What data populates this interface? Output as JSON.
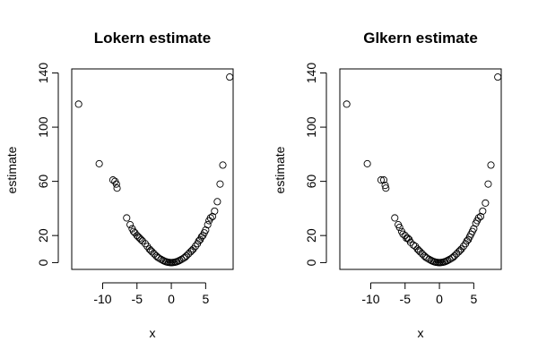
{
  "chart_data": [
    {
      "type": "scatter",
      "title": "Lokern estimate",
      "xlabel": "x",
      "ylabel": "estimate",
      "xlim": [
        -14.5,
        9
      ],
      "ylim": [
        -5,
        143
      ],
      "xticks": [
        -10,
        -5,
        0,
        5
      ],
      "yticks": [
        0,
        20,
        60,
        100,
        140
      ],
      "grid": false,
      "points": [
        [
          -13.5,
          117
        ],
        [
          -10.5,
          73
        ],
        [
          -8.5,
          61
        ],
        [
          -8.2,
          60
        ],
        [
          -8.0,
          58
        ],
        [
          -7.9,
          55
        ],
        [
          -6.5,
          33
        ],
        [
          -6.0,
          28
        ],
        [
          -5.7,
          25
        ],
        [
          -5.5,
          23
        ],
        [
          -5.3,
          22
        ],
        [
          -5.0,
          20
        ],
        [
          -4.8,
          19
        ],
        [
          -4.6,
          18
        ],
        [
          -4.4,
          17
        ],
        [
          -4.2,
          16
        ],
        [
          -3.8,
          14
        ],
        [
          -3.5,
          12
        ],
        [
          -3.2,
          10
        ],
        [
          -3.0,
          9
        ],
        [
          -2.8,
          8
        ],
        [
          -2.5,
          6.5
        ],
        [
          -2.2,
          5
        ],
        [
          -2.0,
          4
        ],
        [
          -1.8,
          3.3
        ],
        [
          -1.5,
          2.4
        ],
        [
          -1.2,
          1.6
        ],
        [
          -1.0,
          1.1
        ],
        [
          -0.8,
          0.7
        ],
        [
          -0.6,
          0.4
        ],
        [
          -0.4,
          0.2
        ],
        [
          -0.2,
          0.05
        ],
        [
          0.0,
          0
        ],
        [
          0.2,
          0.05
        ],
        [
          0.4,
          0.2
        ],
        [
          0.6,
          0.4
        ],
        [
          0.8,
          0.7
        ],
        [
          1.0,
          1.1
        ],
        [
          1.2,
          1.6
        ],
        [
          1.5,
          2.4
        ],
        [
          1.8,
          3.3
        ],
        [
          2.0,
          4
        ],
        [
          2.2,
          5
        ],
        [
          2.5,
          6.5
        ],
        [
          2.8,
          8
        ],
        [
          3.0,
          9
        ],
        [
          3.2,
          10
        ],
        [
          3.5,
          12
        ],
        [
          3.8,
          14
        ],
        [
          4.0,
          16
        ],
        [
          4.2,
          17
        ],
        [
          4.4,
          19
        ],
        [
          4.6,
          20
        ],
        [
          4.8,
          22
        ],
        [
          5.0,
          24
        ],
        [
          5.3,
          28
        ],
        [
          5.5,
          31
        ],
        [
          5.7,
          33
        ],
        [
          6.0,
          34
        ],
        [
          6.3,
          38
        ],
        [
          6.7,
          45
        ],
        [
          7.1,
          58
        ],
        [
          7.5,
          72
        ],
        [
          8.5,
          137
        ]
      ]
    },
    {
      "type": "scatter",
      "title": "Glkern estimate",
      "xlabel": "x",
      "ylabel": "estimate",
      "xlim": [
        -14.5,
        9
      ],
      "ylim": [
        -5,
        143
      ],
      "xticks": [
        -10,
        -5,
        0,
        5
      ],
      "yticks": [
        0,
        20,
        60,
        100,
        140
      ],
      "grid": false,
      "points": [
        [
          -13.5,
          117
        ],
        [
          -10.5,
          73
        ],
        [
          -8.5,
          61
        ],
        [
          -8.1,
          61
        ],
        [
          -7.9,
          57
        ],
        [
          -7.8,
          55
        ],
        [
          -6.5,
          33
        ],
        [
          -6.0,
          28
        ],
        [
          -5.8,
          26
        ],
        [
          -5.5,
          23
        ],
        [
          -5.3,
          21
        ],
        [
          -5.0,
          20
        ],
        [
          -4.8,
          18
        ],
        [
          -4.6,
          18
        ],
        [
          -4.4,
          17
        ],
        [
          -4.2,
          15
        ],
        [
          -3.8,
          13
        ],
        [
          -3.5,
          12
        ],
        [
          -3.2,
          10
        ],
        [
          -3.0,
          9
        ],
        [
          -2.8,
          8
        ],
        [
          -2.5,
          6.5
        ],
        [
          -2.2,
          5
        ],
        [
          -2.0,
          4
        ],
        [
          -1.8,
          3.3
        ],
        [
          -1.5,
          2.4
        ],
        [
          -1.2,
          1.6
        ],
        [
          -1.0,
          1.1
        ],
        [
          -0.8,
          0.7
        ],
        [
          -0.6,
          0.4
        ],
        [
          -0.4,
          0.2
        ],
        [
          -0.2,
          0.05
        ],
        [
          0.0,
          0
        ],
        [
          0.2,
          0.05
        ],
        [
          0.4,
          0.2
        ],
        [
          0.6,
          0.4
        ],
        [
          0.8,
          0.7
        ],
        [
          1.0,
          1.1
        ],
        [
          1.2,
          1.6
        ],
        [
          1.5,
          2.4
        ],
        [
          1.8,
          3.3
        ],
        [
          2.0,
          4
        ],
        [
          2.2,
          5
        ],
        [
          2.5,
          6.5
        ],
        [
          2.8,
          8
        ],
        [
          3.0,
          9
        ],
        [
          3.2,
          10
        ],
        [
          3.5,
          12
        ],
        [
          3.8,
          14
        ],
        [
          4.0,
          16
        ],
        [
          4.2,
          17
        ],
        [
          4.4,
          19
        ],
        [
          4.6,
          21
        ],
        [
          4.8,
          23
        ],
        [
          5.0,
          25
        ],
        [
          5.3,
          29
        ],
        [
          5.5,
          31
        ],
        [
          5.7,
          33
        ],
        [
          6.0,
          34
        ],
        [
          6.3,
          38
        ],
        [
          6.7,
          44
        ],
        [
          7.1,
          58
        ],
        [
          7.5,
          72
        ],
        [
          8.5,
          137
        ]
      ]
    }
  ]
}
